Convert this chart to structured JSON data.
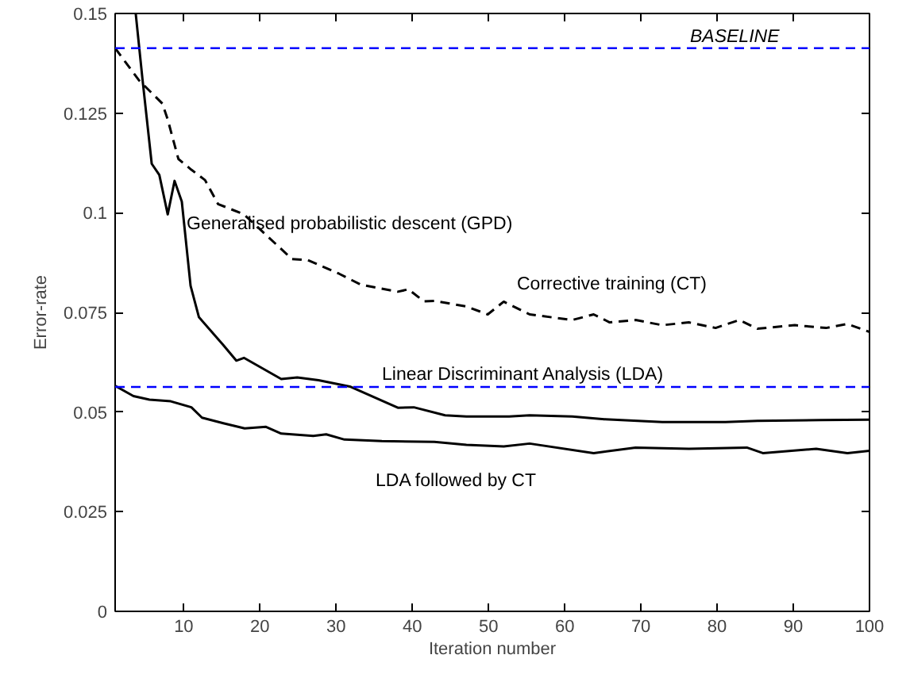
{
  "chart_data": {
    "type": "line",
    "xlabel": "Iteration number",
    "ylabel": "Error-rate",
    "xlim": [
      1,
      100
    ],
    "ylim": [
      0,
      0.15
    ],
    "xticks": [
      10,
      20,
      30,
      40,
      50,
      60,
      70,
      80,
      90,
      100
    ],
    "yticks": [
      0,
      0.025,
      0.05,
      0.075,
      0.1,
      0.125,
      0.15
    ],
    "grid": false,
    "marker": "none",
    "series": [
      {
        "name": "Generalised probabilistic descent (GPD)",
        "color": "#000000",
        "line_style": "solid",
        "x": [
          3.7,
          4.6,
          5.8,
          6.8,
          7.9,
          8.8,
          9.75,
          10.9,
          12,
          15.2,
          16.9,
          17.9,
          22.8,
          24.9,
          27.7,
          31.8,
          38.1,
          40.2,
          44.3,
          47.1,
          52.7,
          55.4,
          61,
          65.2,
          72.8,
          81.1,
          85.3,
          93.6,
          100
        ],
        "values": [
          0.15,
          0.1333,
          0.1123,
          0.1095,
          0.0996,
          0.108,
          0.1028,
          0.0817,
          0.0738,
          0.0668,
          0.0629,
          0.0636,
          0.0583,
          0.0587,
          0.058,
          0.0564,
          0.0511,
          0.0512,
          0.0492,
          0.0489,
          0.0489,
          0.0492,
          0.0489,
          0.0482,
          0.0475,
          0.0475,
          0.0478,
          0.048,
          0.0481
        ]
      },
      {
        "name": "Corrective training (CT)",
        "color": "#000000",
        "line_style": "dashed",
        "x": [
          1,
          4.1,
          7.2,
          7.9,
          9.3,
          11,
          12.8,
          14.5,
          17.9,
          24.2,
          26.3,
          30.4,
          33.2,
          38.1,
          39.5,
          41.5,
          42.9,
          47.1,
          49.9,
          52,
          55.4,
          61,
          63.8,
          65.9,
          69.3,
          72.8,
          76.3,
          79.8,
          82.9,
          85.3,
          90.2,
          94.3,
          97.1,
          100
        ],
        "values": [
          0.1413,
          0.1333,
          0.1274,
          0.1234,
          0.1135,
          0.1108,
          0.1082,
          0.1022,
          0.0996,
          0.0884,
          0.0881,
          0.0847,
          0.082,
          0.0802,
          0.0808,
          0.0778,
          0.0779,
          0.0765,
          0.0745,
          0.0777,
          0.0745,
          0.0731,
          0.0745,
          0.0725,
          0.0731,
          0.0718,
          0.0725,
          0.0711,
          0.0731,
          0.0709,
          0.0718,
          0.0711,
          0.0721,
          0.0701
        ]
      },
      {
        "name": "LDA followed by CT",
        "color": "#000000",
        "line_style": "solid",
        "x": [
          1,
          3.4,
          5.5,
          8.3,
          11,
          12.4,
          15.2,
          18,
          20.8,
          22.8,
          27,
          28.7,
          31.1,
          36,
          42.9,
          47.1,
          52,
          55.4,
          63.8,
          69.3,
          76.3,
          83.9,
          86,
          93,
          97.1,
          100
        ],
        "values": [
          0.0566,
          0.054,
          0.0531,
          0.0527,
          0.0512,
          0.0486,
          0.0472,
          0.0459,
          0.0463,
          0.0446,
          0.044,
          0.0444,
          0.0431,
          0.0427,
          0.0425,
          0.0418,
          0.0414,
          0.0421,
          0.0397,
          0.0411,
          0.0408,
          0.0411,
          0.0397,
          0.0408,
          0.0397,
          0.0403
        ]
      }
    ],
    "ref_lines": [
      {
        "axis": "y",
        "value": 0.1413,
        "label": "BASELINE",
        "color": "#0000ff",
        "line_style": "dashed"
      },
      {
        "axis": "y",
        "value": 0.0563,
        "label": "Linear Discriminant Analysis (LDA)",
        "color": "#0000ff",
        "line_style": "dashed"
      }
    ]
  }
}
